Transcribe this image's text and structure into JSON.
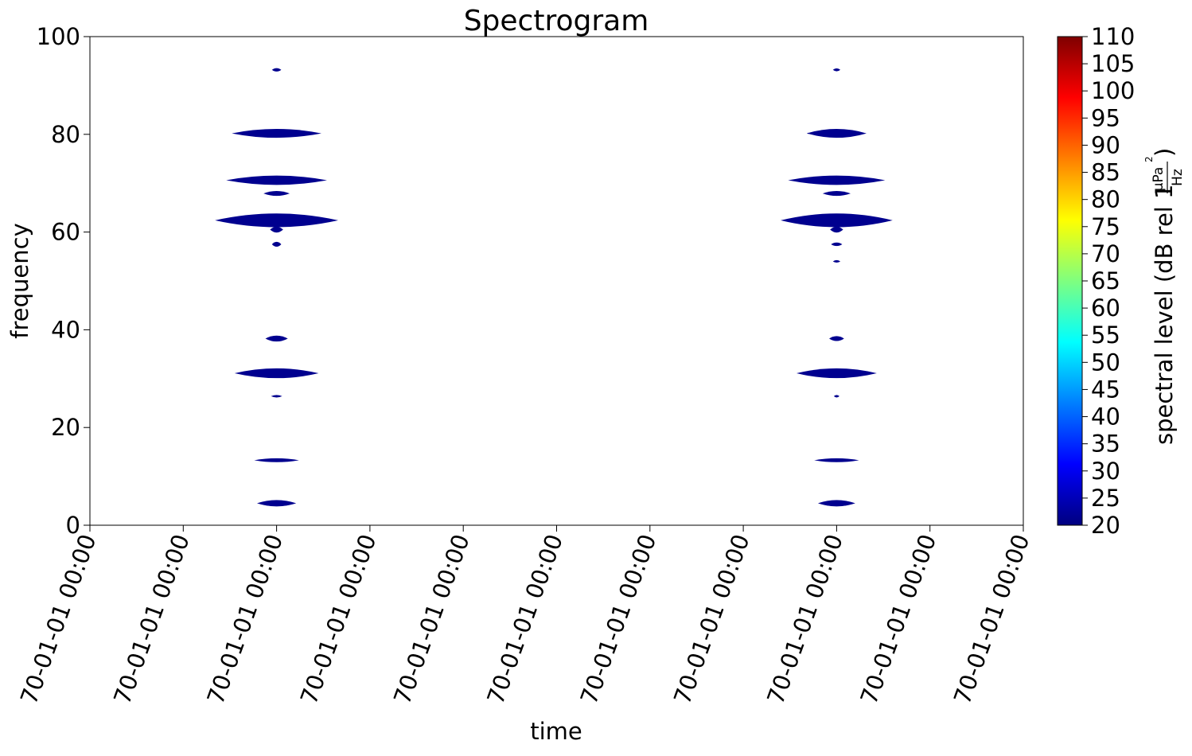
{
  "chart_data": {
    "type": "heatmap",
    "title": "Spectrogram",
    "xlabel": "time",
    "ylabel": "frequency",
    "x_tick_labels": [
      "70-01-01 00:00",
      "70-01-01 00:00",
      "70-01-01 00:00",
      "70-01-01 00:00",
      "70-01-01 00:00",
      "70-01-01 00:00",
      "70-01-01 00:00",
      "70-01-01 00:00",
      "70-01-01 00:00",
      "70-01-01 00:00",
      "70-01-01 00:00"
    ],
    "xlim": [
      0,
      10
    ],
    "ylim": [
      0,
      100
    ],
    "y_ticks": [
      0,
      20,
      40,
      60,
      80,
      100
    ],
    "colorbar": {
      "label_main": "spectral level (dB rel 1",
      "label_numerator": "μPa",
      "label_exponent": "2",
      "label_denominator": "Hz",
      "label_close": ")",
      "range": [
        20,
        110
      ],
      "ticks": [
        20,
        25,
        30,
        35,
        40,
        45,
        50,
        55,
        60,
        65,
        70,
        75,
        80,
        85,
        90,
        95,
        100,
        105,
        110
      ],
      "colormap": "jet",
      "stops": [
        "#00007f",
        "#0000ff",
        "#007fff",
        "#00ffff",
        "#7fff7f",
        "#ffff00",
        "#ff7f00",
        "#ff0000",
        "#7f0000"
      ]
    },
    "blob_color": "#00008f",
    "series": [
      {
        "x_center": 2.0,
        "features": [
          {
            "freq": 93.2,
            "half_width": 0.05,
            "half_height": 0.35
          },
          {
            "freq": 80.2,
            "half_width": 0.48,
            "half_height": 0.9
          },
          {
            "freq": 70.6,
            "half_width": 0.54,
            "half_height": 0.95
          },
          {
            "freq": 67.9,
            "half_width": 0.14,
            "half_height": 0.5
          },
          {
            "freq": 62.4,
            "half_width": 0.66,
            "half_height": 1.4
          },
          {
            "freq": 60.5,
            "half_width": 0.07,
            "half_height": 0.6
          },
          {
            "freq": 57.5,
            "half_width": 0.05,
            "half_height": 0.5
          },
          {
            "freq": 38.2,
            "half_width": 0.12,
            "half_height": 0.6
          },
          {
            "freq": 31.1,
            "half_width": 0.45,
            "half_height": 1.0
          },
          {
            "freq": 26.4,
            "half_width": 0.06,
            "half_height": 0.25
          },
          {
            "freq": 13.3,
            "half_width": 0.24,
            "half_height": 0.4
          },
          {
            "freq": 4.5,
            "half_width": 0.21,
            "half_height": 0.65
          }
        ]
      },
      {
        "x_center": 8.0,
        "features": [
          {
            "freq": 93.2,
            "half_width": 0.04,
            "half_height": 0.3
          },
          {
            "freq": 80.2,
            "half_width": 0.32,
            "half_height": 0.9
          },
          {
            "freq": 70.6,
            "half_width": 0.52,
            "half_height": 0.95
          },
          {
            "freq": 67.9,
            "half_width": 0.15,
            "half_height": 0.5
          },
          {
            "freq": 62.4,
            "half_width": 0.6,
            "half_height": 1.4
          },
          {
            "freq": 60.5,
            "half_width": 0.07,
            "half_height": 0.6
          },
          {
            "freq": 57.5,
            "half_width": 0.06,
            "half_height": 0.35
          },
          {
            "freq": 54.0,
            "half_width": 0.04,
            "half_height": 0.25
          },
          {
            "freq": 38.2,
            "half_width": 0.08,
            "half_height": 0.5
          },
          {
            "freq": 31.1,
            "half_width": 0.43,
            "half_height": 1.0
          },
          {
            "freq": 26.4,
            "half_width": 0.03,
            "half_height": 0.25
          },
          {
            "freq": 13.3,
            "half_width": 0.24,
            "half_height": 0.4
          },
          {
            "freq": 4.5,
            "half_width": 0.2,
            "half_height": 0.65
          }
        ]
      }
    ]
  }
}
